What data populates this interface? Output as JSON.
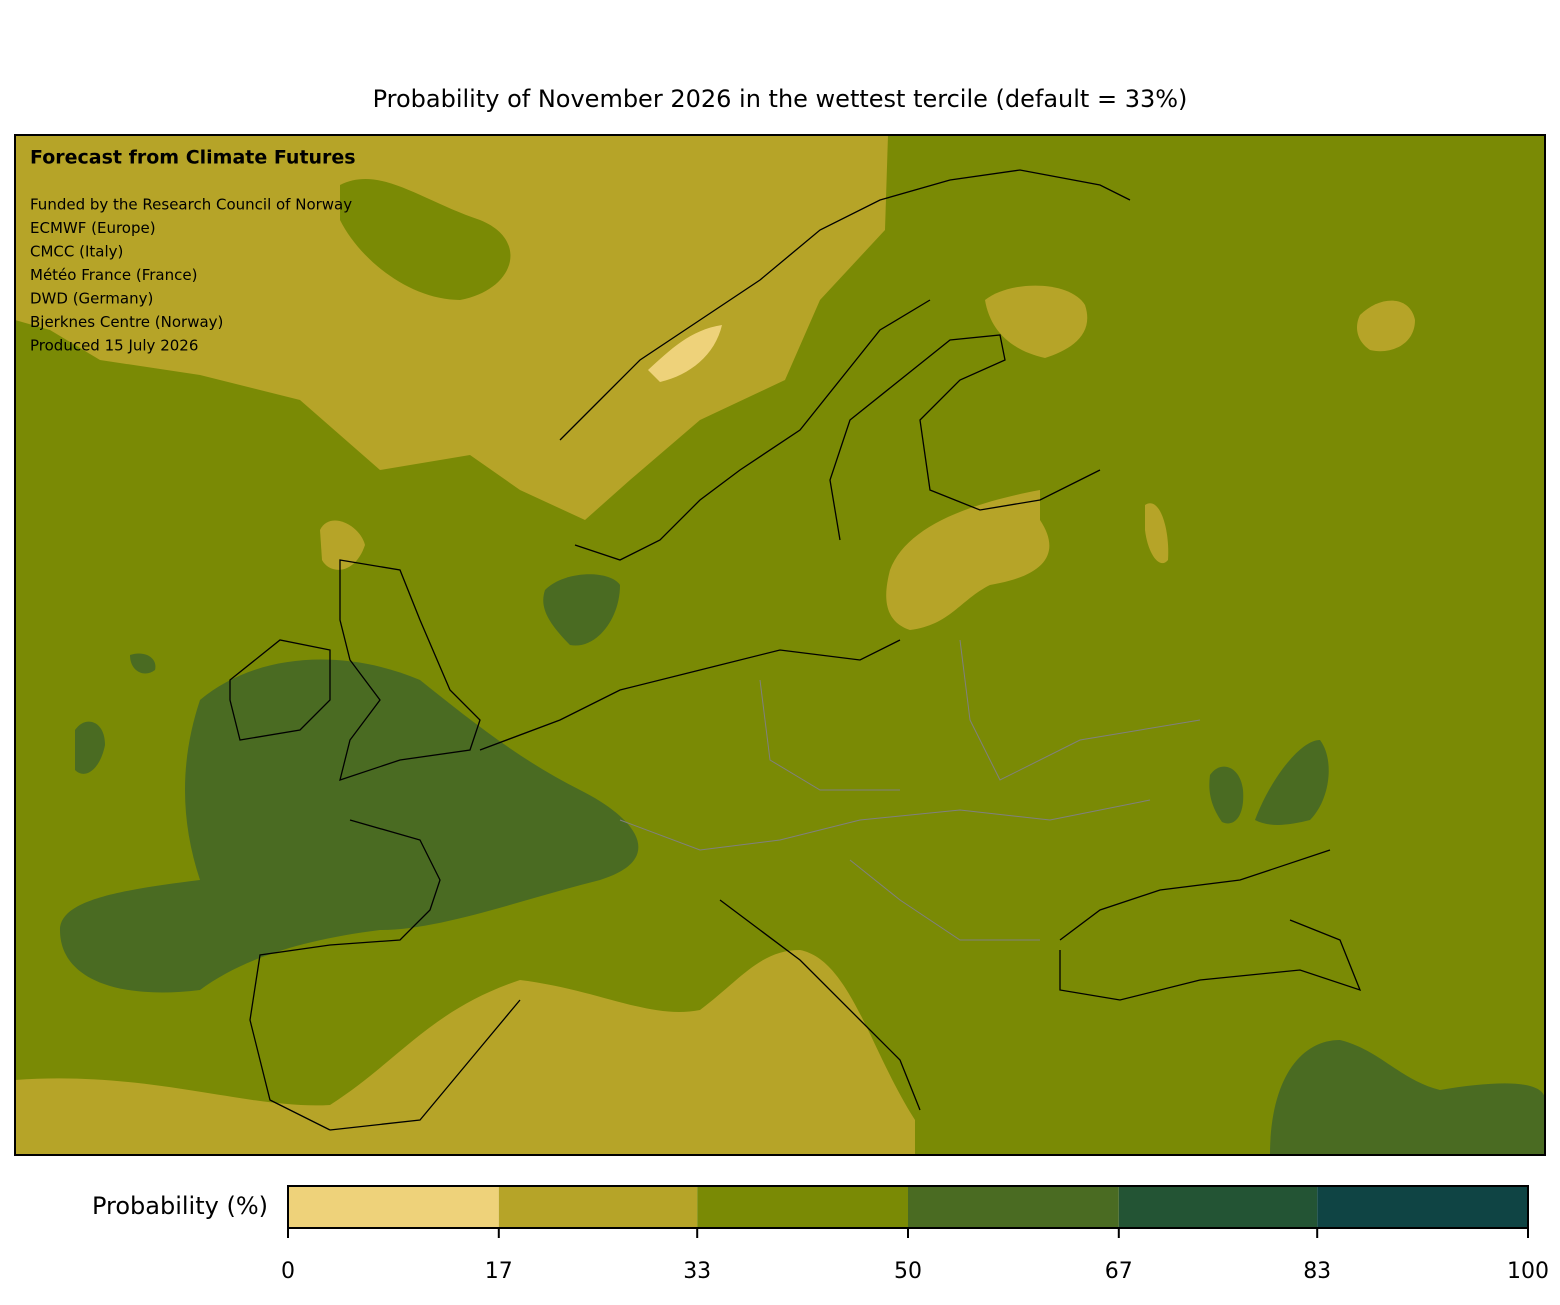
{
  "title": "Probability of November 2026 in the wettest tercile (default = 33%)",
  "annotation": {
    "heading": "Forecast from Climate Futures",
    "lines": [
      "Funded by the Research Council of Norway",
      "ECMWF (Europe)",
      "CMCC (Italy)",
      "Météo France (France)",
      "DWD (Germany)",
      "Bjerknes Centre (Norway)",
      "Produced 15 July 2026"
    ]
  },
  "colorbar": {
    "label": "Probability (%)",
    "lim": [
      0,
      100
    ],
    "ticks": [
      0,
      17,
      33,
      50,
      67,
      83,
      100
    ],
    "colors": [
      "#eed27a",
      "#b6a428",
      "#7a8a05",
      "#4a6b22",
      "#235434",
      "#0f4444"
    ]
  }
}
